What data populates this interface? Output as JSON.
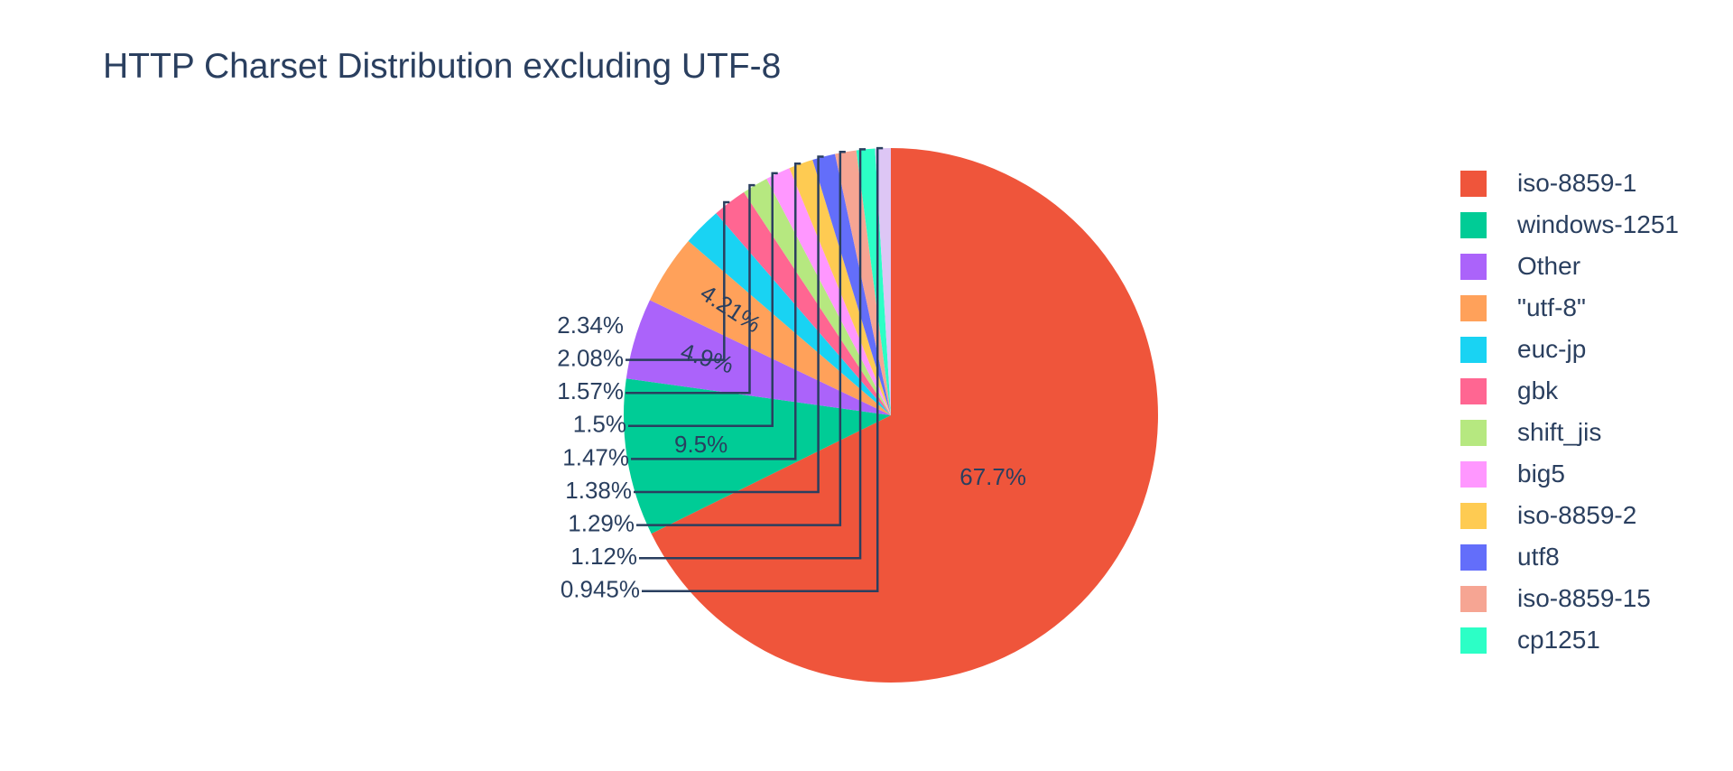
{
  "chart_data": {
    "type": "pie",
    "title": "HTTP Charset Distribution excluding UTF-8",
    "legend_position": "right",
    "slices": [
      {
        "label": "iso-8859-1",
        "value": 67.7,
        "text": "67.7%",
        "color": "#EF553B"
      },
      {
        "label": "windows-1251",
        "value": 9.5,
        "text": "9.5%",
        "color": "#00CC96"
      },
      {
        "label": "Other",
        "value": 4.9,
        "text": "4.9%",
        "color": "#AB63FA"
      },
      {
        "label": "\"utf-8\"",
        "value": 4.21,
        "text": "4.21%",
        "color": "#FFA15A"
      },
      {
        "label": "euc-jp",
        "value": 2.34,
        "text": "2.34%",
        "color": "#19D3F3"
      },
      {
        "label": "gbk",
        "value": 2.08,
        "text": "2.08%",
        "color": "#FF6692"
      },
      {
        "label": "shift_jis",
        "value": 1.57,
        "text": "1.57%",
        "color": "#B6E880"
      },
      {
        "label": "big5",
        "value": 1.5,
        "text": "1.5%",
        "color": "#FF97FF"
      },
      {
        "label": "iso-8859-2",
        "value": 1.47,
        "text": "1.47%",
        "color": "#FECB52"
      },
      {
        "label": "utf8",
        "value": 1.38,
        "text": "1.38%",
        "color": "#636EFA"
      },
      {
        "label": "iso-8859-15",
        "value": 1.29,
        "text": "1.29%",
        "color": "#F6A593"
      },
      {
        "label": "cp1251",
        "value": 1.12,
        "text": "1.12%",
        "color": "#2CFFC6"
      },
      {
        "label": "",
        "value": 0.945,
        "text": "0.945%",
        "color": "#DDC6F5"
      }
    ]
  }
}
